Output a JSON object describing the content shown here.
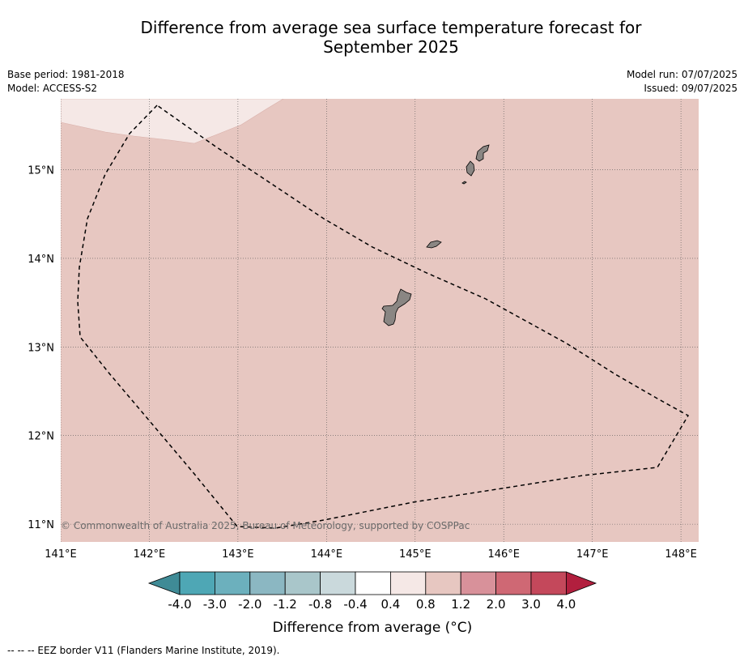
{
  "title": "Difference from average sea surface temperature forecast for\nSeptember 2025",
  "info_left": [
    "Base period: 1981-2018",
    "Model: ACCESS-S2"
  ],
  "info_right": [
    "Model run: 07/07/2025",
    "Issued: 09/07/2025"
  ],
  "map": {
    "lon_range": [
      141.0,
      148.2
    ],
    "lat_range": [
      10.8,
      15.8
    ],
    "lon_ticks": [
      "141°E",
      "142°E",
      "143°E",
      "144°E",
      "145°E",
      "146°E",
      "147°E",
      "148°E"
    ],
    "lat_ticks": [
      "15°N",
      "14°N",
      "13°N",
      "12°N",
      "11°N"
    ],
    "sea_color": "#e7c7c1",
    "cool_patch_color": "#f5e8e6",
    "land_color": "#8a8683",
    "border_style": "dashed",
    "copyright": "© Commonwealth of Australia 2025, Bureau of Meteorology, supported by COSPPac"
  },
  "colorbar": {
    "title": "Difference from average (°C)",
    "labels": [
      "-4.0",
      "-3.0",
      "-2.0",
      "-1.2",
      "-0.8",
      "-0.4",
      "0.4",
      "0.8",
      "1.2",
      "2.0",
      "3.0",
      "4.0"
    ],
    "colors": [
      "#3f8b96",
      "#4ea7b5",
      "#6cb0bd",
      "#8bb7c2",
      "#a9c6ca",
      "#cad9dc",
      "#ffffff",
      "#f5e8e6",
      "#e7c7c1",
      "#d8919a",
      "#cf6874",
      "#c4485b",
      "#b21f3e"
    ]
  },
  "footnote": "--  --  -- EEZ border V11 (Flanders Marine Institute, 2019)."
}
